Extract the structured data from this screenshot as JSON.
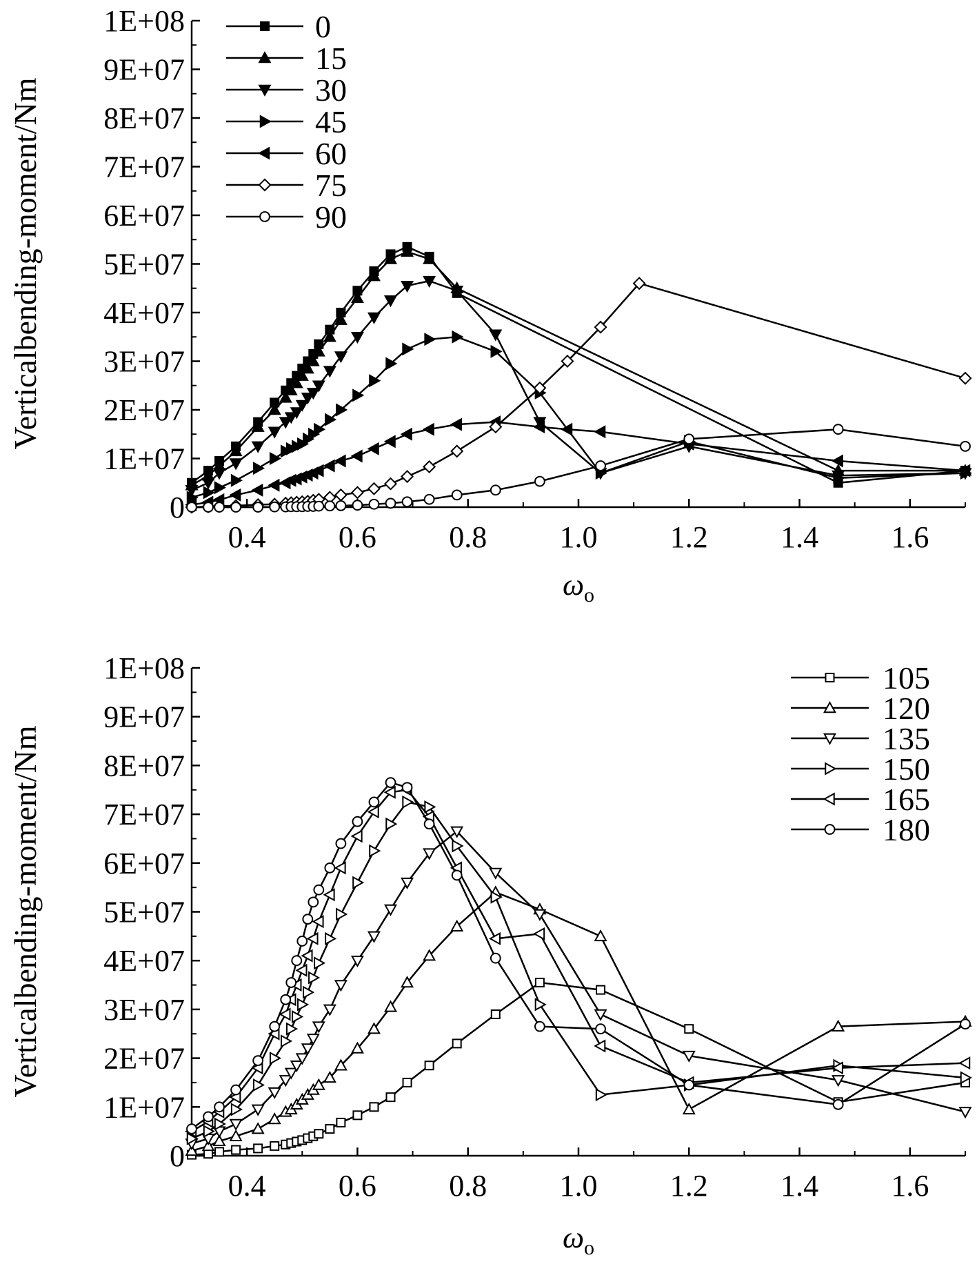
{
  "chart_data": [
    {
      "type": "line",
      "ylabel": "Verticalbending-moment/Nm",
      "xlabel": "ω",
      "xlabel_sub": "o",
      "xlim": [
        0.3,
        1.7
      ],
      "ylim": [
        0,
        100000000
      ],
      "xticks": [
        "0.4",
        "0.6",
        "0.8",
        "1.0",
        "1.2",
        "1.4",
        "1.6"
      ],
      "yticks": [
        "0",
        "1E+07",
        "2E+07",
        "3E+07",
        "4E+07",
        "5E+07",
        "6E+07",
        "7E+07",
        "8E+07",
        "9E+07",
        "1E+08"
      ],
      "legend_position": "top-left",
      "series": [
        {
          "name": "0",
          "marker": "square-filled",
          "x": [
            0.3,
            0.33,
            0.35,
            0.38,
            0.42,
            0.45,
            0.47,
            0.48,
            0.49,
            0.5,
            0.51,
            0.52,
            0.53,
            0.55,
            0.57,
            0.6,
            0.63,
            0.66,
            0.69,
            0.73,
            0.78,
            1.47,
            1.7
          ],
          "y": [
            5000000.0,
            7500000.0,
            9500000.0,
            12500000.0,
            17500000.0,
            21500000.0,
            24000000.0,
            25500000.0,
            27000000.0,
            28500000.0,
            30000000.0,
            31500000.0,
            33500000.0,
            36500000.0,
            40000000.0,
            44500000.0,
            48500000.0,
            52000000.0,
            53500000.0,
            51500000.0,
            44000000.0,
            5000000.0,
            7500000.0
          ]
        },
        {
          "name": "15",
          "marker": "triangle-up-filled",
          "x": [
            0.3,
            0.33,
            0.35,
            0.38,
            0.42,
            0.45,
            0.47,
            0.48,
            0.49,
            0.5,
            0.51,
            0.52,
            0.53,
            0.55,
            0.57,
            0.6,
            0.63,
            0.66,
            0.69,
            0.73,
            0.78,
            1.47,
            1.7
          ],
          "y": [
            4500000.0,
            6500000.0,
            8500000.0,
            11500000.0,
            16500000.0,
            20000000.0,
            22500000.0,
            24000000.0,
            25500000.0,
            27000000.0,
            28500000.0,
            30000000.0,
            32000000.0,
            35000000.0,
            38500000.0,
            43000000.0,
            47500000.0,
            51000000.0,
            52500000.0,
            51000000.0,
            45000000.0,
            7500000.0,
            7500000.0
          ]
        },
        {
          "name": "30",
          "marker": "triangle-down-filled",
          "x": [
            0.3,
            0.33,
            0.35,
            0.38,
            0.42,
            0.45,
            0.47,
            0.48,
            0.49,
            0.5,
            0.51,
            0.52,
            0.53,
            0.55,
            0.57,
            0.6,
            0.63,
            0.66,
            0.69,
            0.73,
            0.78,
            0.85,
            0.93,
            1.04,
            1.2,
            1.47,
            1.7
          ],
          "y": [
            3500000.0,
            5000000.0,
            7000000.0,
            9000000.0,
            12500000.0,
            15500000.0,
            17500000.0,
            18500000.0,
            19500000.0,
            21000000.0,
            22500000.0,
            23500000.0,
            25000000.0,
            28000000.0,
            31000000.0,
            35000000.0,
            39000000.0,
            42500000.0,
            45500000.0,
            46500000.0,
            44500000.0,
            35500000.0,
            17500000.0,
            7000000.0,
            12500000.0,
            6500000.0,
            7000000.0
          ]
        },
        {
          "name": "45",
          "marker": "triangle-right-filled",
          "x": [
            0.3,
            0.33,
            0.35,
            0.38,
            0.42,
            0.45,
            0.47,
            0.48,
            0.49,
            0.5,
            0.51,
            0.52,
            0.53,
            0.55,
            0.57,
            0.6,
            0.63,
            0.66,
            0.69,
            0.73,
            0.78,
            0.85,
            0.93,
            1.04,
            1.2,
            1.47,
            1.7
          ],
          "y": [
            2000000.0,
            3000000.0,
            4000000.0,
            5500000.0,
            8000000.0,
            10000000.0,
            11500000.0,
            12000000.0,
            12500000.0,
            13000000.0,
            14000000.0,
            15000000.0,
            16000000.0,
            18000000.0,
            20000000.0,
            23000000.0,
            26000000.0,
            29500000.0,
            32500000.0,
            34500000.0,
            35000000.0,
            32000000.0,
            23500000.0,
            7000000.0,
            13500000.0,
            6000000.0,
            7000000.0
          ]
        },
        {
          "name": "60",
          "marker": "triangle-left-filled",
          "x": [
            0.3,
            0.33,
            0.35,
            0.38,
            0.42,
            0.45,
            0.47,
            0.48,
            0.49,
            0.5,
            0.51,
            0.52,
            0.53,
            0.55,
            0.57,
            0.6,
            0.63,
            0.66,
            0.69,
            0.73,
            0.78,
            0.85,
            0.93,
            0.98,
            1.04,
            1.2,
            1.47,
            1.7
          ],
          "y": [
            500000.0,
            1000000.0,
            1500000.0,
            2500000.0,
            3500000.0,
            4500000.0,
            5000000.0,
            5500000.0,
            5800000.0,
            6200000.0,
            6600000.0,
            7000000.0,
            7500000.0,
            8500000.0,
            9500000.0,
            10500000.0,
            12000000.0,
            13500000.0,
            15000000.0,
            16000000.0,
            17000000.0,
            17500000.0,
            16500000.0,
            16000000.0,
            15500000.0,
            13000000.0,
            9500000.0,
            7500000.0
          ]
        },
        {
          "name": "75",
          "marker": "diamond-open",
          "x": [
            0.3,
            0.33,
            0.35,
            0.38,
            0.42,
            0.45,
            0.47,
            0.48,
            0.49,
            0.5,
            0.51,
            0.52,
            0.53,
            0.55,
            0.57,
            0.6,
            0.63,
            0.66,
            0.69,
            0.73,
            0.78,
            0.85,
            0.93,
            0.98,
            1.04,
            1.11,
            1.7
          ],
          "y": [
            0.0,
            100000.0,
            200000.0,
            300000.0,
            500000.0,
            600000.0,
            800000.0,
            900000.0,
            1000000.0,
            1100000.0,
            1200000.0,
            1400000.0,
            1600000.0,
            2000000.0,
            2500000.0,
            3000000.0,
            3800000.0,
            4800000.0,
            6300000.0,
            8300000.0,
            11500000.0,
            16500000.0,
            24500000.0,
            30000000.0,
            37000000.0,
            46000000.0,
            26500000.0
          ]
        },
        {
          "name": "90",
          "marker": "circle-open",
          "x": [
            0.3,
            0.33,
            0.35,
            0.38,
            0.42,
            0.45,
            0.47,
            0.48,
            0.49,
            0.5,
            0.51,
            0.52,
            0.53,
            0.55,
            0.57,
            0.6,
            0.63,
            0.66,
            0.69,
            0.73,
            0.78,
            0.85,
            0.93,
            1.04,
            1.2,
            1.47,
            1.7
          ],
          "y": [
            0.0,
            0.0,
            0.0,
            0.0,
            0.0,
            50000.0,
            50000.0,
            100000.0,
            100000.0,
            100000.0,
            150000.0,
            150000.0,
            200000.0,
            250000.0,
            300000.0,
            400000.0,
            600000.0,
            800000.0,
            1100000.0,
            1600000.0,
            2500000.0,
            3500000.0,
            5300000.0,
            8500000.0,
            14000000.0,
            16000000.0,
            12500000.0
          ]
        }
      ]
    },
    {
      "type": "line",
      "ylabel": "Verticalbending-moment/Nm",
      "xlabel": "ω",
      "xlabel_sub": "o",
      "xlim": [
        0.3,
        1.7
      ],
      "ylim": [
        0,
        100000000
      ],
      "xticks": [
        "0.4",
        "0.6",
        "0.8",
        "1.0",
        "1.2",
        "1.4",
        "1.6"
      ],
      "yticks": [
        "0",
        "1E+07",
        "2E+07",
        "3E+07",
        "4E+07",
        "5E+07",
        "6E+07",
        "7E+07",
        "8E+07",
        "9E+07",
        "1E+08"
      ],
      "legend_position": "top-right",
      "series": [
        {
          "name": "105",
          "marker": "square-open",
          "x": [
            0.3,
            0.33,
            0.35,
            0.38,
            0.42,
            0.45,
            0.47,
            0.48,
            0.49,
            0.5,
            0.51,
            0.52,
            0.53,
            0.55,
            0.57,
            0.6,
            0.63,
            0.66,
            0.69,
            0.73,
            0.78,
            0.85,
            0.93,
            1.04,
            1.2,
            1.47,
            1.7
          ],
          "y": [
            200000.0,
            400000.0,
            800000.0,
            1200000.0,
            1500000.0,
            2000000.0,
            2300000.0,
            2600000.0,
            2900000.0,
            3200000.0,
            3600000.0,
            4000000.0,
            4500000.0,
            5500000.0,
            6800000.0,
            8300000.0,
            10000000.0,
            12000000.0,
            15000000.0,
            18500000.0,
            23000000.0,
            29000000.0,
            35500000.0,
            34000000.0,
            26000000.0,
            11000000.0,
            15000000.0
          ]
        },
        {
          "name": "120",
          "marker": "triangle-up-open",
          "x": [
            0.3,
            0.33,
            0.35,
            0.38,
            0.42,
            0.45,
            0.47,
            0.48,
            0.49,
            0.5,
            0.51,
            0.52,
            0.53,
            0.55,
            0.57,
            0.6,
            0.63,
            0.66,
            0.69,
            0.73,
            0.78,
            0.85,
            0.93,
            1.04,
            1.2,
            1.47,
            1.7
          ],
          "y": [
            1000000.0,
            2000000.0,
            3000000.0,
            4000000.0,
            5500000.0,
            7500000.0,
            9000000.0,
            9500000.0,
            10500000.0,
            11500000.0,
            12500000.0,
            13500000.0,
            14500000.0,
            16000000.0,
            18500000.0,
            22000000.0,
            26000000.0,
            30500000.0,
            35500000.0,
            41000000.0,
            47000000.0,
            54000000.0,
            50500000.0,
            45000000.0,
            9500000.0,
            26500000.0,
            27500000.0
          ]
        },
        {
          "name": "135",
          "marker": "triangle-down-open",
          "x": [
            0.3,
            0.33,
            0.35,
            0.38,
            0.42,
            0.45,
            0.47,
            0.48,
            0.49,
            0.5,
            0.51,
            0.52,
            0.53,
            0.55,
            0.57,
            0.6,
            0.63,
            0.66,
            0.69,
            0.73,
            0.78,
            0.85,
            0.93,
            1.04,
            1.2,
            1.47,
            1.7
          ],
          "y": [
            2500000.0,
            3500000.0,
            5000000.0,
            6500000.0,
            9500000.0,
            13000000.0,
            15500000.0,
            17000000.0,
            18500000.0,
            20000000.0,
            22000000.0,
            24000000.0,
            26500000.0,
            30000000.0,
            35000000.0,
            40000000.0,
            45000000.0,
            50500000.0,
            56000000.0,
            62000000.0,
            66500000.0,
            58000000.0,
            49500000.0,
            29000000.0,
            20500000.0,
            15500000.0,
            9000000.0
          ]
        },
        {
          "name": "150",
          "marker": "triangle-right-open",
          "x": [
            0.3,
            0.33,
            0.35,
            0.38,
            0.42,
            0.45,
            0.47,
            0.48,
            0.49,
            0.5,
            0.51,
            0.52,
            0.53,
            0.55,
            0.57,
            0.6,
            0.63,
            0.66,
            0.69,
            0.73,
            0.78,
            0.85,
            0.93,
            1.04,
            1.2,
            1.47,
            1.7
          ],
          "y": [
            3500000.0,
            5000000.0,
            6500000.0,
            9500000.0,
            14500000.0,
            20000000.0,
            23500000.0,
            26000000.0,
            28500000.0,
            31000000.0,
            33500000.0,
            36500000.0,
            39500000.0,
            44500000.0,
            49500000.0,
            56000000.0,
            62500000.0,
            68000000.0,
            72500000.0,
            71500000.0,
            63500000.0,
            53000000.0,
            31000000.0,
            12500000.0,
            14500000.0,
            18500000.0,
            16000000.0
          ]
        },
        {
          "name": "165",
          "marker": "triangle-left-open",
          "x": [
            0.3,
            0.33,
            0.35,
            0.38,
            0.42,
            0.45,
            0.47,
            0.48,
            0.49,
            0.5,
            0.51,
            0.52,
            0.53,
            0.55,
            0.57,
            0.6,
            0.63,
            0.66,
            0.69,
            0.73,
            0.78,
            0.85,
            0.93,
            1.04,
            1.2,
            1.47,
            1.7
          ],
          "y": [
            5000000.0,
            7000000.0,
            9000000.0,
            12000000.0,
            18000000.0,
            25000000.0,
            29000000.0,
            32000000.0,
            35000000.0,
            38000000.0,
            41000000.0,
            44500000.0,
            48000000.0,
            53500000.0,
            59000000.0,
            65500000.0,
            70500000.0,
            74500000.0,
            75000000.0,
            69500000.0,
            59000000.0,
            44500000.0,
            45500000.0,
            22500000.0,
            15000000.0,
            18000000.0,
            19000000.0
          ]
        },
        {
          "name": "180",
          "marker": "circle-open",
          "x": [
            0.3,
            0.33,
            0.35,
            0.38,
            0.42,
            0.45,
            0.47,
            0.48,
            0.49,
            0.5,
            0.51,
            0.52,
            0.53,
            0.55,
            0.57,
            0.6,
            0.63,
            0.66,
            0.69,
            0.73,
            0.78,
            0.85,
            0.93,
            1.04,
            1.2,
            1.47,
            1.7
          ],
          "y": [
            5500000.0,
            8000000.0,
            10000000.0,
            13500000.0,
            19500000.0,
            26500000.0,
            32000000.0,
            35500000.0,
            40000000.0,
            44000000.0,
            48500000.0,
            52000000.0,
            54500000.0,
            59000000.0,
            64000000.0,
            68500000.0,
            72500000.0,
            76500000.0,
            75500000.0,
            68000000.0,
            57500000.0,
            40500000.0,
            26500000.0,
            26000000.0,
            14500000.0,
            10500000.0,
            27000000.0
          ]
        }
      ]
    }
  ]
}
